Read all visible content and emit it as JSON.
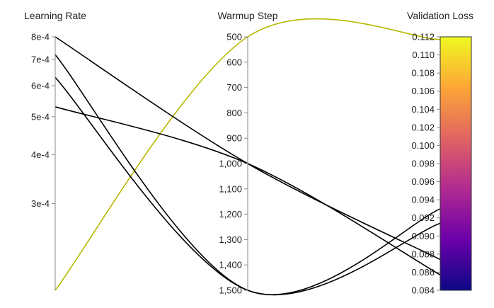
{
  "chart_data": {
    "type": "parallel_coordinates",
    "axes": [
      {
        "key": "lr",
        "label": "Learning Rate",
        "scale": "log",
        "range": [
          0.00018,
          0.0008
        ],
        "ticks": [
          0.0008,
          0.0007,
          0.0006,
          0.0005,
          0.0004,
          0.0003
        ],
        "tick_labels": [
          "8e-4",
          "7e-4",
          "6e-4",
          "5e-4",
          "4e-4",
          "3e-4"
        ]
      },
      {
        "key": "warmup",
        "label": "Warmup Step",
        "scale": "linear",
        "range": [
          500,
          1500
        ],
        "reversed": true,
        "ticks": [
          500,
          600,
          700,
          800,
          900,
          1000,
          1100,
          1200,
          1300,
          1400,
          1500
        ],
        "tick_labels": [
          "500",
          "600",
          "700",
          "800",
          "900",
          "1,000",
          "1,100",
          "1,200",
          "1,300",
          "1,400",
          "1,500"
        ]
      },
      {
        "key": "loss",
        "label": "Validation Loss",
        "scale": "linear",
        "range": [
          0.084,
          0.112
        ],
        "colorbar": true,
        "colormap": [
          "#0d0887",
          "#6a00a8",
          "#b12a90",
          "#e16462",
          "#fca636",
          "#f0f921"
        ],
        "ticks": [
          0.112,
          0.11,
          0.108,
          0.106,
          0.104,
          0.102,
          0.1,
          0.098,
          0.096,
          0.094,
          0.092,
          0.09,
          0.088,
          0.086,
          0.084
        ],
        "tick_labels": [
          "0.112",
          "0.110",
          "0.108",
          "0.106",
          "0.104",
          "0.102",
          "0.100",
          "0.098",
          "0.096",
          "0.094",
          "0.092",
          "0.090",
          "0.088",
          "0.086",
          "0.084"
        ]
      }
    ],
    "series": [
      {
        "lr": 0.00018,
        "warmup": 500,
        "loss": 0.1117,
        "color": "#b8b800"
      },
      {
        "lr": 0.0008,
        "warmup": 1000,
        "loss": 0.0874,
        "color": "#000000"
      },
      {
        "lr": 0.00072,
        "warmup": 1500,
        "loss": 0.093,
        "color": "#000000"
      },
      {
        "lr": 0.00063,
        "warmup": 1500,
        "loss": 0.0914,
        "color": "#000000"
      },
      {
        "lr": 0.00053,
        "warmup": 1000,
        "loss": 0.0857,
        "color": "#000000"
      }
    ]
  }
}
